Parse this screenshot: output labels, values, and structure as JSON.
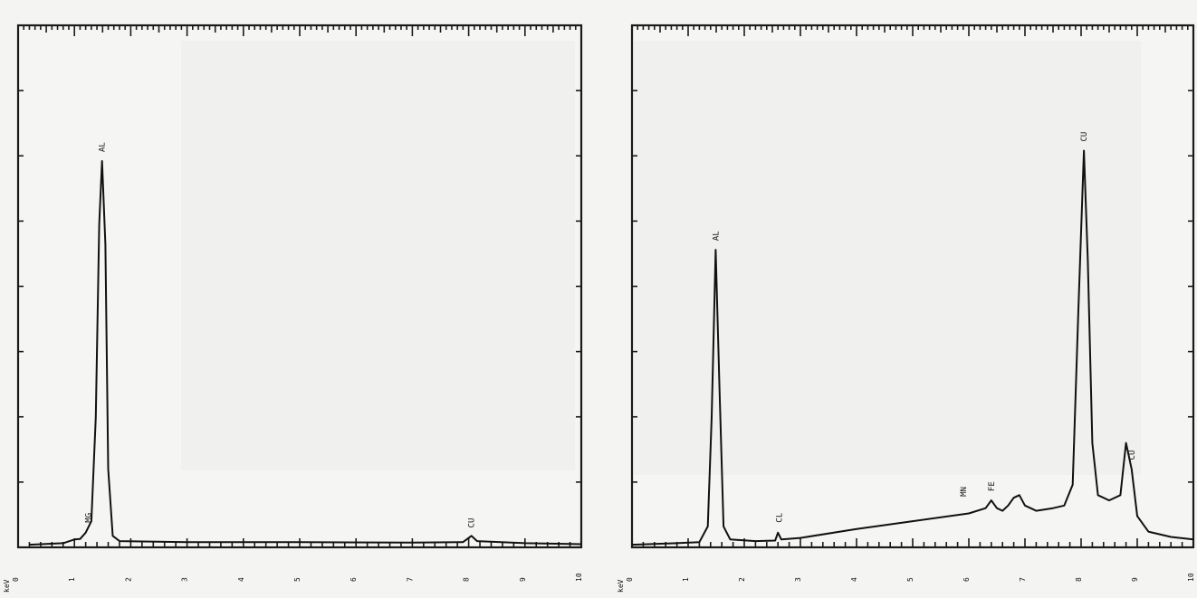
{
  "chart_data": [
    {
      "type": "line",
      "title": "",
      "xlabel": "keV",
      "ylabel": "",
      "xlim": [
        0,
        10
      ],
      "ylim": [
        0,
        100
      ],
      "grid": false,
      "x_ticks": [
        "0",
        "1",
        "2",
        "3",
        "4",
        "5",
        "6",
        "7",
        "8",
        "9",
        "10"
      ],
      "series": [
        {
          "points": [
            [
              0.2,
              0.5
            ],
            [
              0.8,
              0.8
            ],
            [
              1.0,
              1.5
            ],
            [
              1.1,
              1.6
            ],
            [
              1.2,
              2.8
            ],
            [
              1.3,
              5.0
            ],
            [
              1.38,
              25
            ],
            [
              1.44,
              62
            ],
            [
              1.49,
              74
            ],
            [
              1.55,
              58
            ],
            [
              1.6,
              15
            ],
            [
              1.68,
              2.2
            ],
            [
              1.8,
              1.2
            ],
            [
              3,
              1.0
            ],
            [
              5,
              1.0
            ],
            [
              7,
              0.9
            ],
            [
              7.9,
              1.0
            ],
            [
              8.05,
              2.2
            ],
            [
              8.15,
              1.2
            ],
            [
              9,
              0.8
            ],
            [
              10,
              0.6
            ]
          ]
        }
      ],
      "peaks": [
        {
          "label": "MG",
          "x": 1.25,
          "y": 3
        },
        {
          "label": "AL",
          "x": 1.49,
          "y": 74
        },
        {
          "label": "CU",
          "x": 8.05,
          "y": 2
        }
      ]
    },
    {
      "type": "line",
      "title": "",
      "xlabel": "keV",
      "ylabel": "",
      "xlim": [
        0,
        10
      ],
      "ylim": [
        0,
        100
      ],
      "grid": false,
      "x_ticks": [
        "0",
        "1",
        "2",
        "3",
        "4",
        "5",
        "6",
        "7",
        "8",
        "9",
        "10"
      ],
      "series": [
        {
          "points": [
            [
              0,
              0.5
            ],
            [
              0.8,
              0.8
            ],
            [
              1.2,
              1.0
            ],
            [
              1.35,
              4
            ],
            [
              1.42,
              25
            ],
            [
              1.49,
              57
            ],
            [
              1.56,
              30
            ],
            [
              1.63,
              4
            ],
            [
              1.75,
              1.5
            ],
            [
              2.2,
              1.2
            ],
            [
              2.55,
              1.3
            ],
            [
              2.6,
              2.8
            ],
            [
              2.66,
              1.5
            ],
            [
              3,
              1.8
            ],
            [
              4,
              3.5
            ],
            [
              5,
              5.0
            ],
            [
              6,
              6.5
            ],
            [
              6.3,
              7.5
            ],
            [
              6.4,
              9
            ],
            [
              6.5,
              7.5
            ],
            [
              6.6,
              7
            ],
            [
              6.7,
              8
            ],
            [
              6.8,
              9.5
            ],
            [
              6.9,
              10
            ],
            [
              7.0,
              8
            ],
            [
              7.2,
              7
            ],
            [
              7.5,
              7.5
            ],
            [
              7.7,
              8
            ],
            [
              7.85,
              12
            ],
            [
              7.95,
              45
            ],
            [
              8.05,
              76
            ],
            [
              8.12,
              55
            ],
            [
              8.2,
              20
            ],
            [
              8.3,
              10
            ],
            [
              8.5,
              9
            ],
            [
              8.7,
              10
            ],
            [
              8.8,
              20
            ],
            [
              8.9,
              15
            ],
            [
              9.0,
              6
            ],
            [
              9.2,
              3
            ],
            [
              9.6,
              2
            ],
            [
              10,
              1.5
            ]
          ]
        }
      ],
      "peaks": [
        {
          "label": "AL",
          "x": 1.49,
          "y": 57
        },
        {
          "label": "CL",
          "x": 2.62,
          "y": 3
        },
        {
          "label": "MN",
          "x": 5.9,
          "y": 8
        },
        {
          "label": "FE",
          "x": 6.4,
          "y": 9
        },
        {
          "label": "CU",
          "x": 8.05,
          "y": 76
        },
        {
          "label": "CU",
          "x": 8.9,
          "y": 15
        }
      ]
    }
  ]
}
